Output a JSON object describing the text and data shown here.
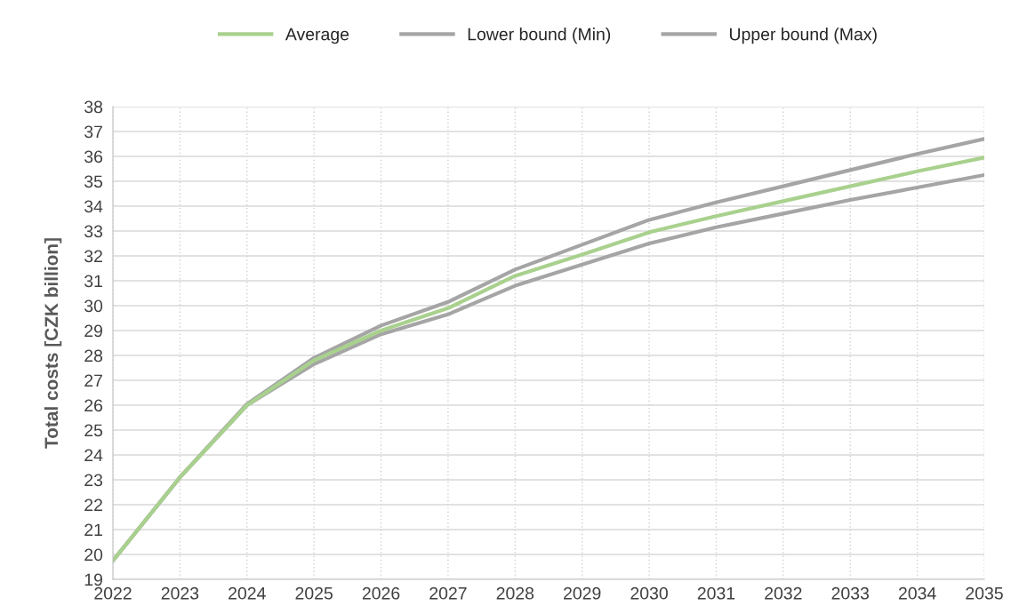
{
  "chart_data": {
    "type": "line",
    "ylabel": "Total costs [CZK billion]",
    "x": [
      2022,
      2023,
      2024,
      2025,
      2026,
      2027,
      2028,
      2029,
      2030,
      2031,
      2032,
      2033,
      2034,
      2035
    ],
    "series": [
      {
        "name": "Average",
        "color": "#a9d18e",
        "values": [
          19.75,
          23.1,
          26.0,
          27.8,
          29.0,
          29.9,
          31.2,
          32.05,
          32.95,
          33.6,
          34.2,
          34.8,
          35.4,
          35.95
        ]
      },
      {
        "name": "Lower bound (Min)",
        "color": "#a5a5a5",
        "values": [
          19.75,
          23.1,
          26.0,
          27.65,
          28.85,
          29.65,
          30.8,
          31.65,
          32.5,
          33.15,
          33.7,
          34.25,
          34.75,
          35.25
        ]
      },
      {
        "name": "Upper bound (Max)",
        "color": "#a5a5a5",
        "values": [
          19.75,
          23.1,
          26.05,
          27.9,
          29.2,
          30.15,
          31.45,
          32.45,
          33.45,
          34.15,
          34.8,
          35.45,
          36.1,
          36.7
        ]
      }
    ],
    "xlim": [
      2022,
      2035
    ],
    "xticks": [
      2022,
      2023,
      2024,
      2025,
      2026,
      2027,
      2028,
      2029,
      2030,
      2031,
      2032,
      2033,
      2034,
      2035
    ],
    "ylim": [
      19,
      38
    ],
    "yticks": [
      19,
      20,
      21,
      22,
      23,
      24,
      25,
      26,
      27,
      28,
      29,
      30,
      31,
      32,
      33,
      34,
      35,
      36,
      37,
      38
    ],
    "grid": true,
    "legend": "top",
    "marker": "none",
    "line_style": "solid"
  }
}
